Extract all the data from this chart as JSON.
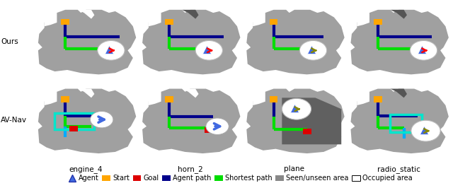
{
  "bg_color": "#ffffff",
  "map_gray": "#a0a0a0",
  "dark_gray": "#606060",
  "agent_path_color": "#00008B",
  "shortest_path_color": "#00dd00",
  "start_color": "#FFA500",
  "goal_color": "#dd0000",
  "agent_fill": "#4169E1",
  "cyan_color": "#00E5CC",
  "light_blue_color": "#00AAFF",
  "row_labels": [
    "Ours",
    "AV-Nav"
  ],
  "col_labels": [
    "engine_4",
    "horn_2",
    "plane",
    "radio_static"
  ],
  "legend_agent_color": "#4169E1",
  "legend_start_color": "#FFA500",
  "legend_goal_color": "#dd0000",
  "legend_path_color": "#00008B",
  "legend_green_color": "#00dd00",
  "legend_gray_color": "#888888",
  "title_fontsize": 7.5,
  "legend_fontsize": 7.0
}
